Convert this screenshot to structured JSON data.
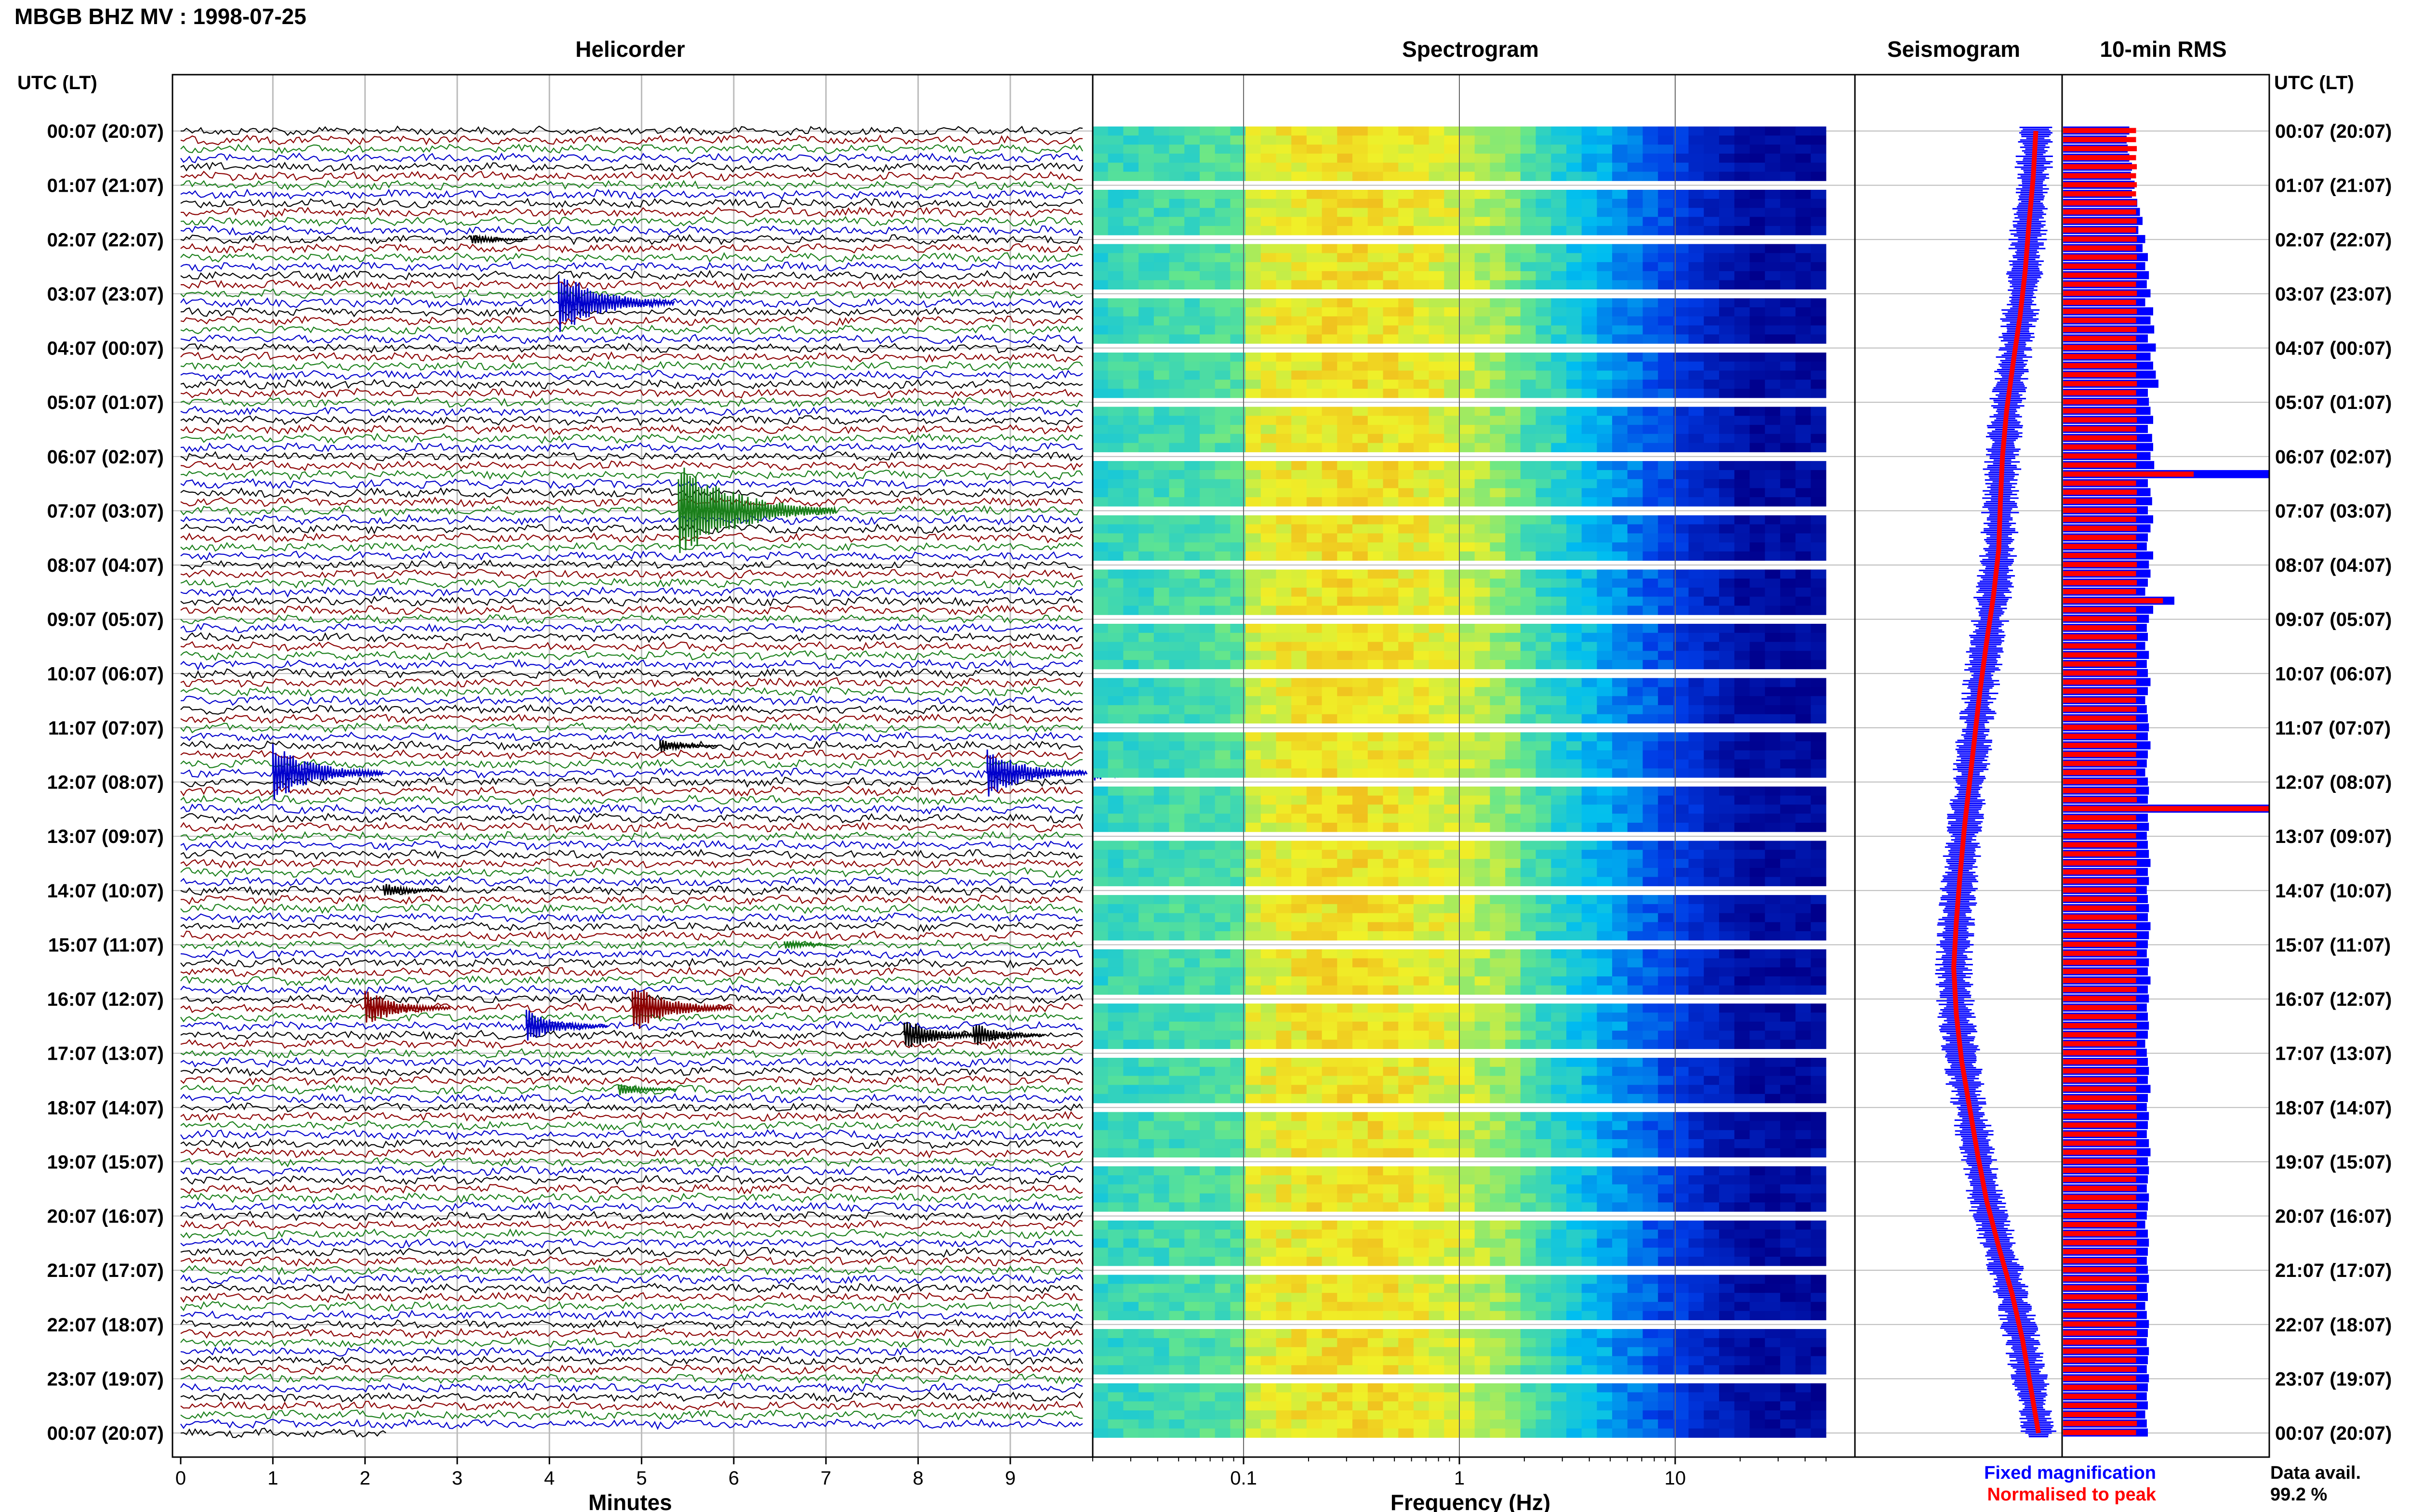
{
  "header": {
    "title": "MBGB BHZ MV : 1998-07-25",
    "time_axis_label": "UTC (LT)"
  },
  "panels": {
    "helicorder": "Helicorder",
    "spectrogram": "Spectrogram",
    "seismogram": "Seismogram",
    "rms": "10-min RMS"
  },
  "footer": {
    "minutes_label": "Minutes",
    "frequency_label": "Frequency (Hz)",
    "legend_fixed": "Fixed magnification",
    "legend_normalised": "Normalised to peak",
    "data_avail_label": "Data avail.",
    "data_avail_value": "99.2 %"
  },
  "colors": {
    "trace_cycle": [
      "#000000",
      "#8b0000",
      "#1a7f1a",
      "#0000cc"
    ],
    "fixed": "#0000ff",
    "normalised": "#ff0000",
    "spectrogram_low": "#00008b",
    "spectrogram_high": "#ffff00"
  },
  "chart_data": [
    {
      "type": "line",
      "name": "helicorder",
      "xlabel": "Minutes",
      "x_ticks": [
        "0",
        "1",
        "2",
        "3",
        "4",
        "5",
        "6",
        "7",
        "8",
        "9"
      ],
      "xlim": [
        0,
        10
      ],
      "time_labels": [
        "00:07 (20:07)",
        "01:07 (21:07)",
        "02:07 (22:07)",
        "03:07 (23:07)",
        "04:07 (00:07)",
        "05:07 (01:07)",
        "06:07 (02:07)",
        "07:07 (03:07)",
        "08:07 (04:07)",
        "09:07 (05:07)",
        "10:07 (06:07)",
        "11:07 (07:07)",
        "12:07 (08:07)",
        "13:07 (09:07)",
        "14:07 (10:07)",
        "15:07 (11:07)",
        "16:07 (12:07)",
        "17:07 (13:07)",
        "18:07 (14:07)",
        "19:07 (15:07)",
        "20:07 (16:07)",
        "21:07 (17:07)",
        "22:07 (18:07)",
        "23:07 (19:07)",
        "00:07 (20:07)"
      ],
      "rows": 145,
      "events": [
        {
          "row": 12,
          "minute": 3.15,
          "amp": 0.7
        },
        {
          "row": 19,
          "minute": 4.1,
          "amp": 3.8
        },
        {
          "row": 42,
          "minute": 5.4,
          "amp": 6.0
        },
        {
          "row": 68,
          "minute": 5.2,
          "amp": 0.8
        },
        {
          "row": 71,
          "minute": 1.0,
          "amp": 3.5
        },
        {
          "row": 71,
          "minute": 8.75,
          "amp": 3.0
        },
        {
          "row": 71,
          "minute": 9.9,
          "amp": 1.0
        },
        {
          "row": 84,
          "minute": 2.2,
          "amp": 0.9
        },
        {
          "row": 90,
          "minute": 6.55,
          "amp": 0.6
        },
        {
          "row": 97,
          "minute": 2.0,
          "amp": 2.2
        },
        {
          "row": 97,
          "minute": 4.9,
          "amp": 3.0
        },
        {
          "row": 99,
          "minute": 3.75,
          "amp": 2.0
        },
        {
          "row": 100,
          "minute": 7.85,
          "amp": 2.0
        },
        {
          "row": 100,
          "minute": 8.6,
          "amp": 1.5
        },
        {
          "row": 106,
          "minute": 4.75,
          "amp": 0.8
        }
      ]
    },
    {
      "type": "heatmap",
      "name": "spectrogram",
      "xlabel": "Frequency (Hz)",
      "xscale": "log",
      "xlim": [
        0.02,
        50
      ],
      "x_ticks": [
        "0.1",
        "1",
        "10"
      ],
      "rows": 145,
      "gap_rows": [
        6,
        12,
        18,
        24,
        30,
        36,
        42,
        48,
        54,
        60,
        66,
        72,
        78,
        84,
        90,
        96,
        102,
        108,
        114,
        120,
        126,
        132,
        138
      ]
    },
    {
      "type": "line",
      "name": "seismogram",
      "series": [
        {
          "name": "Fixed magnification",
          "color": "#0000ff",
          "values": [
            3.05,
            3.0,
            2.92,
            2.85,
            2.75,
            2.62,
            2.5,
            2.42,
            2.38,
            2.35,
            2.25,
            2.12,
            2.0,
            1.9,
            1.8,
            1.7,
            1.62,
            1.55,
            1.5,
            1.55,
            1.65,
            1.8,
            1.95,
            2.12,
            2.35,
            2.6,
            2.8,
            2.95,
            3.1
          ]
        },
        {
          "name": "Normalised to peak",
          "color": "#ff0000",
          "values": [
            1.0,
            1.0,
            0.98,
            0.96,
            0.95,
            0.93,
            0.92,
            0.9,
            0.88,
            0.86,
            0.84,
            0.82,
            0.8,
            0.78,
            0.77,
            0.76,
            0.75,
            0.75,
            0.76,
            0.78,
            0.8,
            0.83,
            0.86,
            0.9,
            0.93,
            0.96,
            0.98,
            1.0,
            1.0
          ]
        }
      ]
    },
    {
      "type": "bar",
      "name": "10-min RMS",
      "series": [
        {
          "name": "Fixed magnification",
          "color": "#0000ff",
          "values": [
            1.25,
            1.2,
            1.22,
            1.25,
            1.3,
            1.28,
            1.35,
            1.3,
            1.4,
            1.45,
            1.5,
            1.42,
            1.55,
            1.5,
            1.6,
            1.55,
            1.62,
            1.58,
            1.65,
            1.55,
            1.7,
            1.65,
            1.72,
            1.6,
            1.75,
            1.65,
            1.7,
            1.75,
            1.8,
            1.6,
            1.62,
            1.65,
            1.7,
            1.6,
            1.68,
            1.7,
            1.65,
            1.72,
            4.0,
            1.6,
            1.65,
            1.68,
            1.6,
            1.7,
            1.65,
            1.6,
            1.58,
            1.7,
            1.62,
            1.65,
            1.6,
            1.55,
            2.1,
            1.7,
            1.62,
            1.58,
            1.6,
            1.55,
            1.62,
            1.58,
            1.6,
            1.65,
            1.6,
            1.55,
            1.58,
            1.6,
            1.62,
            1.6,
            1.65,
            1.6,
            1.58,
            1.55,
            1.6,
            1.62,
            1.6,
            4.0,
            1.6,
            1.62,
            1.58,
            1.6,
            1.62,
            1.65,
            1.6,
            1.62,
            1.58,
            1.6,
            1.62,
            1.6,
            1.65,
            1.62,
            1.6,
            1.58,
            1.62,
            1.6,
            1.65,
            1.6,
            1.62,
            1.58,
            1.6,
            1.62,
            1.6,
            1.55,
            1.58,
            1.6,
            1.62,
            1.6,
            1.65,
            1.6,
            1.58,
            1.62,
            1.6,
            1.58,
            1.62,
            1.65,
            1.6,
            1.62,
            1.6,
            1.58,
            1.62,
            1.6,
            1.58,
            1.55,
            1.6,
            1.62,
            1.6,
            1.58,
            1.6,
            1.62,
            1.58,
            1.6,
            1.55,
            1.58,
            1.62,
            1.6,
            1.58,
            1.62,
            1.6,
            1.58,
            1.62,
            1.6,
            1.58,
            1.6,
            1.55,
            1.58,
            1.6
          ]
        },
        {
          "name": "Normalised to peak",
          "color": "#ff0000",
          "values": [
            0.95,
            0.95,
            0.96,
            0.95,
            0.96,
            0.95,
            0.96,
            0.95,
            0.96,
            0.95,
            0.96,
            0.95,
            0.96,
            0.95,
            0.96,
            0.95,
            0.96,
            0.95,
            0.96,
            0.95,
            0.96,
            0.95,
            0.96,
            0.95,
            0.96,
            0.95,
            0.96,
            0.95,
            0.96,
            0.95,
            0.96,
            0.95,
            0.96,
            0.95,
            0.96,
            0.95,
            0.96,
            0.95,
            1.7,
            0.95,
            0.96,
            0.95,
            0.96,
            0.95,
            0.96,
            0.95,
            0.96,
            0.95,
            0.96,
            0.95,
            0.96,
            0.95,
            1.3,
            0.95,
            0.96,
            0.95,
            0.96,
            0.95,
            0.96,
            0.95,
            0.96,
            0.95,
            0.96,
            0.95,
            0.96,
            0.95,
            0.96,
            0.95,
            0.96,
            0.95,
            0.96,
            0.95,
            0.96,
            0.95,
            0.96,
            2.9,
            0.95,
            0.96,
            0.95,
            0.96,
            0.95,
            0.96,
            0.95,
            0.96,
            0.95,
            0.96,
            0.95,
            0.96,
            0.95,
            0.96,
            0.95,
            0.96,
            0.95,
            0.96,
            0.95,
            0.96,
            0.95,
            0.96,
            0.95,
            0.96,
            0.95,
            0.96,
            0.95,
            0.96,
            0.95,
            0.96,
            0.95,
            0.96,
            0.95,
            0.96,
            0.95,
            0.96,
            0.95,
            0.96,
            0.95,
            0.96,
            0.95,
            0.96,
            0.95,
            0.96,
            0.95,
            0.96,
            0.95,
            0.96,
            0.95,
            0.96,
            0.95,
            0.96,
            0.95,
            0.96,
            0.95,
            0.96,
            0.95,
            0.96,
            0.95,
            0.96,
            0.95,
            0.96,
            0.95,
            0.96,
            0.95,
            0.96,
            0.95,
            0.96,
            0.95
          ]
        }
      ]
    }
  ]
}
